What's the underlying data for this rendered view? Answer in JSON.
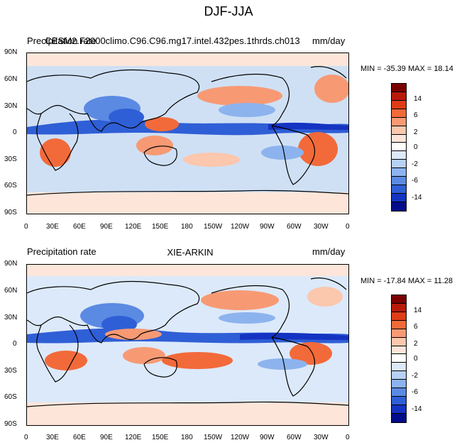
{
  "figure": {
    "title": "DJF-JJA"
  },
  "panels": [
    {
      "left_title": "Precipitation rate",
      "center_title": "CESM2.F2000climo.C96.C96.mg17.intel.432pes.1thrds.ch013",
      "right_title": "mm/day",
      "stats": "MIN = -35.39 MAX =  18.14"
    },
    {
      "left_title": "Precipitation rate",
      "center_title": "XIE-ARKIN",
      "right_title": "mm/day",
      "stats": "MIN = -17.84 MAX =  11.28"
    }
  ],
  "axes": {
    "lat_ticks": [
      "90N",
      "60N",
      "30N",
      "0",
      "30S",
      "60S",
      "90S"
    ],
    "lon_ticks": [
      "0",
      "30E",
      "60E",
      "90E",
      "120E",
      "150E",
      "180",
      "150W",
      "120W",
      "90W",
      "60W",
      "30W",
      "0"
    ]
  },
  "colorbar": {
    "labels": [
      "14",
      "6",
      "2",
      "0",
      "-2",
      "-6",
      "-14"
    ],
    "colors": [
      "#7a0000",
      "#b81a0a",
      "#de3c17",
      "#f26a3a",
      "#f79a74",
      "#fbc7ad",
      "#fde6d9",
      "#ffffff",
      "#dce9fa",
      "#b7d1f4",
      "#8db3ee",
      "#5b8ae3",
      "#2f5fd6",
      "#1533c2",
      "#030c8a"
    ]
  }
}
